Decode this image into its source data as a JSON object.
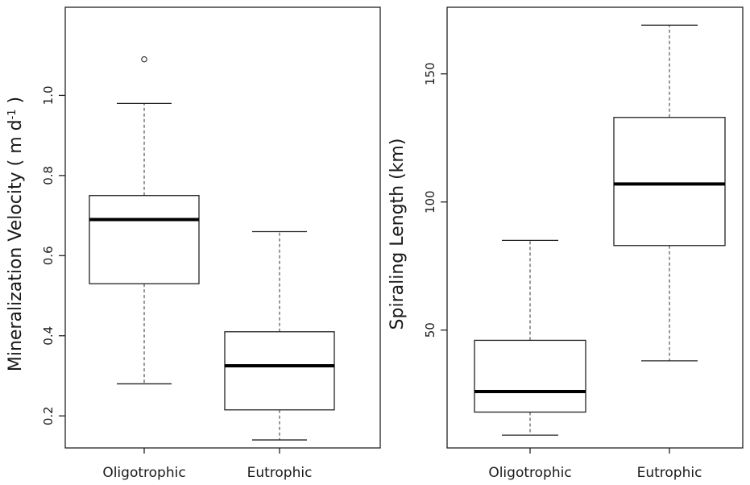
{
  "chart_data": [
    {
      "type": "boxplot",
      "ylabel": "Mineralization Velocity ( m d",
      "ylabel_sup": "-1",
      "ylabel_tail": " )",
      "categories": [
        "Oligotrophic",
        "Eutrophic"
      ],
      "ylim": [
        0.12,
        1.22
      ],
      "yticks": [
        0.2,
        0.4,
        0.6,
        0.8,
        1.0
      ],
      "ytick_labels": [
        "0.2",
        "0.4",
        "0.6",
        "0.8",
        "1.0"
      ],
      "boxes": [
        {
          "category": "Oligotrophic",
          "whisker_low": 0.28,
          "q1": 0.53,
          "median": 0.69,
          "q3": 0.75,
          "whisker_high": 0.98,
          "outliers": [
            1.09
          ]
        },
        {
          "category": "Eutrophic",
          "whisker_low": 0.14,
          "q1": 0.215,
          "median": 0.325,
          "q3": 0.41,
          "whisker_high": 0.66,
          "outliers": []
        }
      ],
      "grid": false,
      "legend": "none"
    },
    {
      "type": "boxplot",
      "ylabel": "Spiraling Length (km)",
      "categories": [
        "Oligotrophic",
        "Eutrophic"
      ],
      "ylim": [
        4,
        176
      ],
      "yticks": [
        50,
        100,
        150
      ],
      "ytick_labels": [
        "50",
        "100",
        "150"
      ],
      "boxes": [
        {
          "category": "Oligotrophic",
          "whisker_low": 9,
          "q1": 18,
          "median": 26,
          "q3": 46,
          "whisker_high": 85,
          "outliers": []
        },
        {
          "category": "Eutrophic",
          "whisker_low": 38,
          "q1": 83,
          "median": 107,
          "q3": 133,
          "whisker_high": 169,
          "outliers": []
        }
      ],
      "grid": false,
      "legend": "none"
    }
  ]
}
